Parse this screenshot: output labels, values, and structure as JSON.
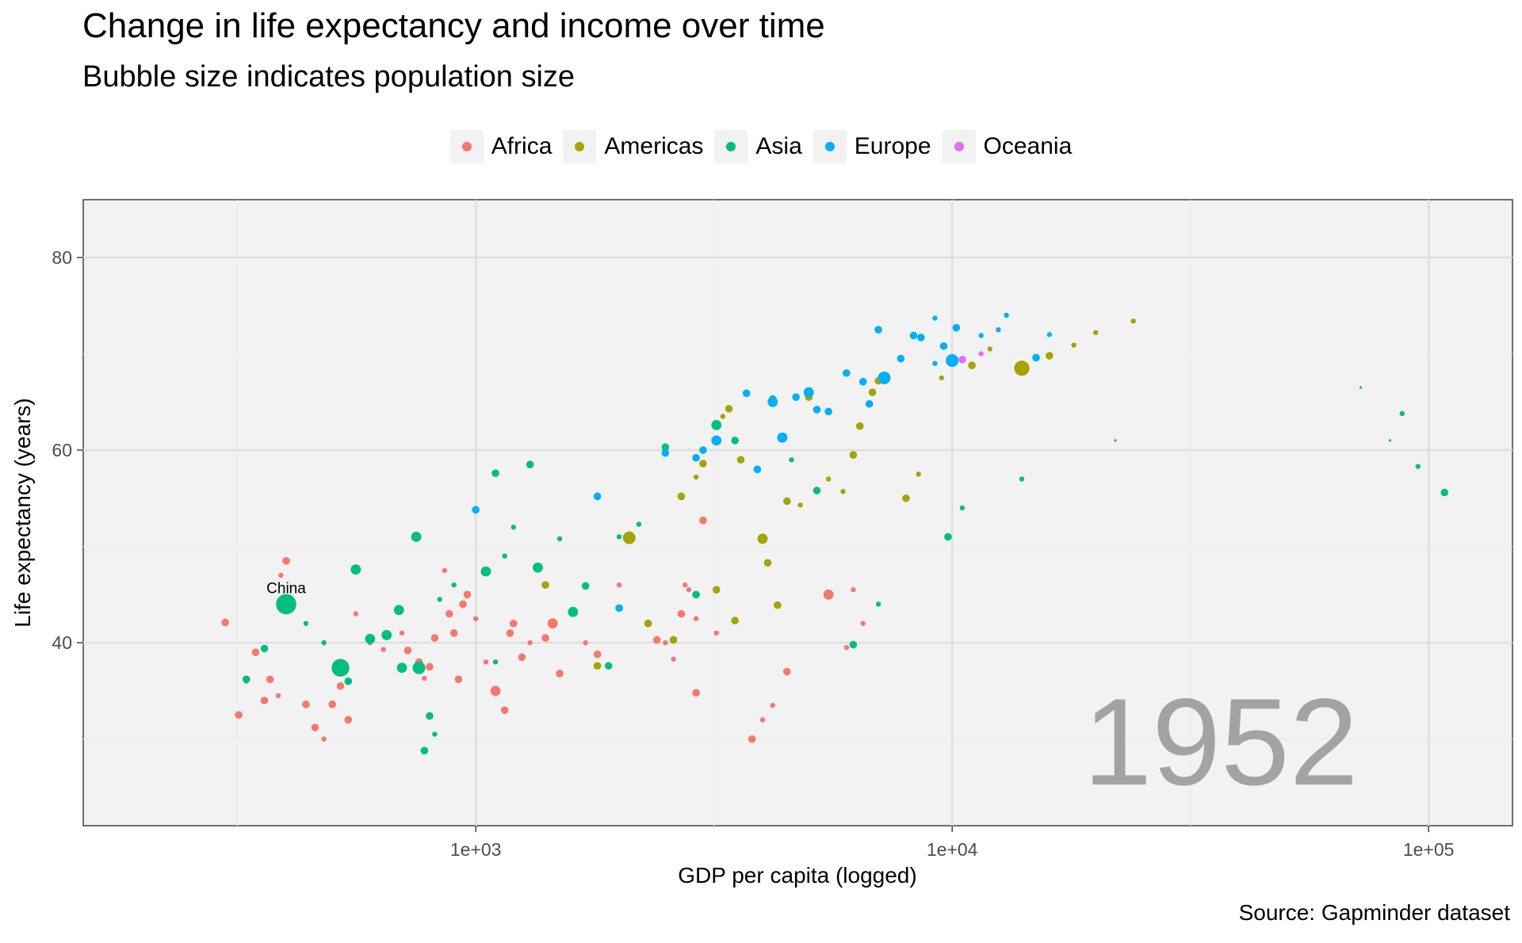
{
  "chart_data": {
    "type": "scatter",
    "title": "Change in life expectancy and income over time",
    "subtitle": "Bubble size indicates population size",
    "xlabel": "GDP per capita (logged)",
    "ylabel": "Life expectancy (years)",
    "caption": "Source: Gapminder dataset",
    "year_label": "1952",
    "x_scale": "log10",
    "xlim": [
      150,
      150000
    ],
    "ylim": [
      21,
      86
    ],
    "x_ticks": [
      {
        "value": 1000,
        "label": "1e+03"
      },
      {
        "value": 10000,
        "label": "1e+04"
      },
      {
        "value": 100000,
        "label": "1e+05"
      }
    ],
    "y_ticks": [
      {
        "value": 40,
        "label": "40"
      },
      {
        "value": 60,
        "label": "60"
      },
      {
        "value": 80,
        "label": "80"
      }
    ],
    "grid": true,
    "legend_position": "top",
    "legend": [
      {
        "name": "Africa",
        "color": "#F8766D"
      },
      {
        "name": "Americas",
        "color": "#A3A500"
      },
      {
        "name": "Asia",
        "color": "#00BF7D"
      },
      {
        "name": "Europe",
        "color": "#00B0F6"
      },
      {
        "name": "Oceania",
        "color": "#E76BF3"
      }
    ],
    "annotations": [
      {
        "text": "China",
        "x": 400,
        "y": 44
      }
    ],
    "series": [
      {
        "name": "Africa",
        "color": "#F8766D",
        "points": [
          [
            298,
            42.1,
            3
          ],
          [
            318,
            32.5,
            3
          ],
          [
            330,
            36.0,
            2
          ],
          [
            345,
            39.0,
            3
          ],
          [
            360,
            34.0,
            3
          ],
          [
            370,
            36.2,
            3
          ],
          [
            385,
            34.5,
            2
          ],
          [
            400,
            48.5,
            3
          ],
          [
            390,
            47.0,
            2
          ],
          [
            440,
            33.6,
            3
          ],
          [
            460,
            31.2,
            3
          ],
          [
            480,
            30.0,
            2
          ],
          [
            500,
            33.6,
            3
          ],
          [
            520,
            35.5,
            3
          ],
          [
            540,
            32.0,
            3
          ],
          [
            560,
            43.0,
            2
          ],
          [
            600,
            40.0,
            2
          ],
          [
            640,
            39.3,
            2
          ],
          [
            700,
            41.0,
            2
          ],
          [
            720,
            39.2,
            3
          ],
          [
            760,
            38.0,
            3
          ],
          [
            780,
            36.3,
            2
          ],
          [
            800,
            37.5,
            3
          ],
          [
            820,
            40.5,
            3
          ],
          [
            860,
            47.5,
            2
          ],
          [
            880,
            43.0,
            3
          ],
          [
            900,
            41.0,
            3
          ],
          [
            920,
            36.2,
            3
          ],
          [
            940,
            44.0,
            3
          ],
          [
            960,
            45.0,
            3
          ],
          [
            1000,
            42.5,
            2
          ],
          [
            1050,
            38.0,
            2
          ],
          [
            1100,
            35.0,
            4
          ],
          [
            1150,
            33.0,
            3
          ],
          [
            1180,
            41.0,
            3
          ],
          [
            1200,
            42.0,
            3
          ],
          [
            1250,
            38.5,
            3
          ],
          [
            1300,
            40.0,
            2
          ],
          [
            1400,
            40.5,
            3
          ],
          [
            1450,
            42.0,
            4
          ],
          [
            1500,
            36.8,
            3
          ],
          [
            1600,
            43.2,
            3
          ],
          [
            1700,
            40.0,
            2
          ],
          [
            1800,
            38.8,
            3
          ],
          [
            2000,
            46.0,
            2
          ],
          [
            2100,
            51.0,
            3
          ],
          [
            2300,
            42.0,
            3
          ],
          [
            2400,
            40.3,
            3
          ],
          [
            2500,
            40.0,
            2
          ],
          [
            2600,
            38.3,
            2
          ],
          [
            2700,
            43.0,
            3
          ],
          [
            2800,
            45.5,
            2
          ],
          [
            2900,
            34.8,
            3
          ],
          [
            3000,
            52.7,
            3
          ],
          [
            3200,
            41.0,
            2
          ],
          [
            3800,
            30.0,
            3
          ],
          [
            4000,
            32.0,
            2
          ],
          [
            4200,
            33.5,
            2
          ],
          [
            4500,
            37.0,
            3
          ],
          [
            5500,
            45.0,
            4
          ],
          [
            6000,
            39.5,
            2
          ],
          [
            6500,
            42.0,
            2
          ],
          [
            6200,
            45.5,
            2
          ],
          [
            2900,
            42.5,
            2
          ],
          [
            2750,
            46.0,
            2
          ]
        ]
      },
      {
        "name": "Americas",
        "color": "#A3A500",
        "points": [
          [
            1400,
            46.0,
            3
          ],
          [
            1800,
            37.6,
            3
          ],
          [
            2100,
            50.9,
            5
          ],
          [
            2300,
            42.0,
            3
          ],
          [
            2600,
            40.3,
            3
          ],
          [
            2700,
            55.2,
            3
          ],
          [
            2900,
            57.2,
            2
          ],
          [
            3000,
            58.6,
            3
          ],
          [
            3200,
            45.5,
            3
          ],
          [
            3400,
            64.3,
            3
          ],
          [
            3500,
            42.3,
            3
          ],
          [
            3600,
            59.0,
            3
          ],
          [
            4000,
            50.8,
            4
          ],
          [
            4100,
            48.3,
            3
          ],
          [
            4300,
            43.9,
            3
          ],
          [
            4500,
            54.7,
            3
          ],
          [
            4800,
            54.3,
            2
          ],
          [
            5000,
            65.5,
            3
          ],
          [
            5500,
            57.0,
            2
          ],
          [
            5900,
            55.7,
            2
          ],
          [
            6200,
            59.5,
            3
          ],
          [
            6400,
            62.5,
            3
          ],
          [
            6800,
            66.0,
            3
          ],
          [
            7000,
            67.2,
            3
          ],
          [
            8000,
            55.0,
            3
          ],
          [
            8500,
            57.5,
            2
          ],
          [
            9500,
            67.5,
            2
          ],
          [
            11000,
            68.8,
            3
          ],
          [
            12000,
            70.5,
            2
          ],
          [
            14000,
            68.5,
            6
          ],
          [
            16000,
            69.8,
            3
          ],
          [
            18000,
            70.9,
            2
          ],
          [
            20000,
            72.2,
            2
          ],
          [
            24000,
            73.4,
            2
          ],
          [
            3300,
            63.5,
            2
          ]
        ]
      },
      {
        "name": "Asia",
        "color": "#00BF7D",
        "points": [
          [
            330,
            36.2,
            3
          ],
          [
            360,
            39.4,
            3
          ],
          [
            400,
            44.0,
            8
          ],
          [
            440,
            42.0,
            2
          ],
          [
            480,
            40.0,
            2
          ],
          [
            520,
            37.4,
            7
          ],
          [
            540,
            36.0,
            3
          ],
          [
            560,
            47.6,
            4
          ],
          [
            600,
            40.4,
            4
          ],
          [
            650,
            40.8,
            4
          ],
          [
            690,
            43.4,
            4
          ],
          [
            700,
            37.4,
            4
          ],
          [
            750,
            51.0,
            4
          ],
          [
            760,
            37.4,
            5
          ],
          [
            780,
            28.8,
            3
          ],
          [
            800,
            32.4,
            3
          ],
          [
            820,
            30.5,
            2
          ],
          [
            840,
            44.5,
            2
          ],
          [
            900,
            46.0,
            2
          ],
          [
            1050,
            47.4,
            4
          ],
          [
            1100,
            57.6,
            3
          ],
          [
            1150,
            49.0,
            2
          ],
          [
            1200,
            52.0,
            2
          ],
          [
            1300,
            58.5,
            3
          ],
          [
            1350,
            47.8,
            4
          ],
          [
            1500,
            50.8,
            2
          ],
          [
            1600,
            43.2,
            4
          ],
          [
            1700,
            45.9,
            3
          ],
          [
            1900,
            37.6,
            3
          ],
          [
            2000,
            51.0,
            2
          ],
          [
            2200,
            52.3,
            2
          ],
          [
            2500,
            60.3,
            3
          ],
          [
            2900,
            45.0,
            3
          ],
          [
            3200,
            62.6,
            4
          ],
          [
            3500,
            61.0,
            3
          ],
          [
            4200,
            65.3,
            3
          ],
          [
            4600,
            59.0,
            2
          ],
          [
            5200,
            55.8,
            3
          ],
          [
            6200,
            39.8,
            3
          ],
          [
            7000,
            44.0,
            2
          ],
          [
            9800,
            51.0,
            3
          ],
          [
            10500,
            54.0,
            2
          ],
          [
            14000,
            57.0,
            2
          ],
          [
            22000,
            61.0,
            1
          ],
          [
            88000,
            63.8,
            2
          ],
          [
            95000,
            58.3,
            2
          ],
          [
            108000,
            55.6,
            3
          ],
          [
            83000,
            61.0,
            1
          ],
          [
            72000,
            66.5,
            1
          ],
          [
            1100,
            38.0,
            2
          ]
        ]
      },
      {
        "name": "Europe",
        "color": "#00B0F6",
        "points": [
          [
            1000,
            53.8,
            3
          ],
          [
            1800,
            55.2,
            3
          ],
          [
            2000,
            43.6,
            3
          ],
          [
            2500,
            59.7,
            3
          ],
          [
            2900,
            59.2,
            3
          ],
          [
            3000,
            60.0,
            3
          ],
          [
            3200,
            61.0,
            4
          ],
          [
            3700,
            65.9,
            3
          ],
          [
            3900,
            58.0,
            3
          ],
          [
            4200,
            65.0,
            4
          ],
          [
            4400,
            61.3,
            4
          ],
          [
            4700,
            65.5,
            3
          ],
          [
            5000,
            66.0,
            4
          ],
          [
            5200,
            64.2,
            3
          ],
          [
            5500,
            64.0,
            3
          ],
          [
            6000,
            68.0,
            3
          ],
          [
            6500,
            67.1,
            3
          ],
          [
            6700,
            64.8,
            3
          ],
          [
            7200,
            67.5,
            5
          ],
          [
            7800,
            69.5,
            3
          ],
          [
            8300,
            71.9,
            3
          ],
          [
            8600,
            71.7,
            3
          ],
          [
            9200,
            69.0,
            2
          ],
          [
            9600,
            70.8,
            3
          ],
          [
            10200,
            72.7,
            3
          ],
          [
            10000,
            69.3,
            5
          ],
          [
            11500,
            71.9,
            2
          ],
          [
            12500,
            72.5,
            2
          ],
          [
            15000,
            69.6,
            3
          ],
          [
            16000,
            72.0,
            2
          ],
          [
            7000,
            72.5,
            3
          ],
          [
            9200,
            73.7,
            2
          ],
          [
            13000,
            74.0,
            2
          ]
        ]
      },
      {
        "name": "Oceania",
        "color": "#E76BF3",
        "points": [
          [
            10500,
            69.4,
            3
          ],
          [
            11500,
            70.0,
            2
          ]
        ]
      }
    ]
  }
}
